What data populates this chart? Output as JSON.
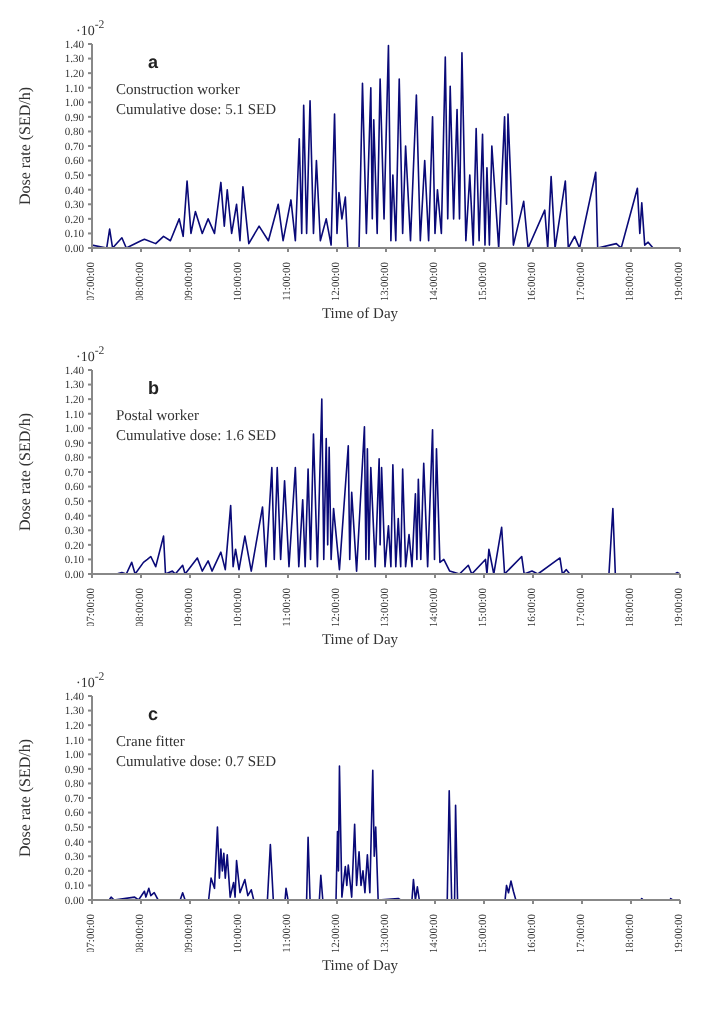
{
  "chart_data": [
    {
      "type": "line",
      "xlabel": "Time of Day",
      "ylabel": "Dose rate (SED/h)",
      "color": "#0a0a78",
      "annotations": [
        "·10$^{-2}$",
        "a",
        "Construction worker",
        "Cumulative dose: 5.1 SED"
      ],
      "xlim": [
        7,
        19
      ],
      "xticks": [
        {
          "value": 7,
          "label": "07:00:00"
        },
        {
          "value": 8,
          "label": "08:00:00"
        },
        {
          "value": 9,
          "label": "09:00:00"
        },
        {
          "value": 10,
          "label": "10:00:00"
        },
        {
          "value": 11,
          "label": "11:00:00"
        },
        {
          "value": 12,
          "label": "12:00:00"
        },
        {
          "value": 13,
          "label": "13:00:00"
        },
        {
          "value": 14,
          "label": "14:00:00"
        },
        {
          "value": 15,
          "label": "15:00:00"
        },
        {
          "value": 16,
          "label": "16:00:00"
        },
        {
          "value": 17,
          "label": "17:00:00"
        },
        {
          "value": 18,
          "label": "18:00:00"
        },
        {
          "value": 19,
          "label": "19:00:00"
        }
      ],
      "ylim": [
        0,
        1.4
      ],
      "yticks": [
        {
          "value": 0,
          "label": "0.00"
        },
        {
          "value": 0.1,
          "label": "0.10"
        },
        {
          "value": 0.2,
          "label": "0.20"
        },
        {
          "value": 0.3,
          "label": "0.30"
        },
        {
          "value": 0.4,
          "label": "0.40"
        },
        {
          "value": 0.5,
          "label": "0.50"
        },
        {
          "value": 0.6,
          "label": "0.60"
        },
        {
          "value": 0.7,
          "label": "0.70"
        },
        {
          "value": 0.8,
          "label": "0.80"
        },
        {
          "value": 0.9,
          "label": "0.90"
        },
        {
          "value": 1,
          "label": "1.00"
        },
        {
          "value": 1.1,
          "label": "1.10"
        },
        {
          "value": 1.2,
          "label": "1.20"
        },
        {
          "value": 1.3,
          "label": "1.30"
        },
        {
          "value": 1.4,
          "label": "1.40"
        }
      ],
      "x": [
        7.0,
        7.3,
        7.36,
        7.42,
        7.61,
        7.7,
        8.0,
        8.07,
        8.3,
        8.46,
        8.6,
        8.78,
        8.86,
        8.94,
        9.02,
        9.11,
        9.25,
        9.37,
        9.5,
        9.63,
        9.7,
        9.76,
        9.85,
        9.95,
        10.02,
        10.08,
        10.2,
        10.41,
        10.6,
        10.8,
        10.9,
        11.06,
        11.15,
        11.23,
        11.28,
        11.32,
        11.38,
        11.45,
        11.52,
        11.58,
        11.66,
        11.78,
        11.88,
        11.95,
        12.0,
        12.04,
        12.1,
        12.17,
        12.22,
        12.45,
        12.52,
        12.6,
        12.69,
        12.72,
        12.75,
        12.82,
        12.88,
        12.96,
        13.05,
        13.1,
        13.14,
        13.2,
        13.27,
        13.34,
        13.4,
        13.5,
        13.62,
        13.7,
        13.79,
        13.87,
        13.95,
        14.0,
        14.05,
        14.13,
        14.21,
        14.26,
        14.31,
        14.38,
        14.45,
        14.5,
        14.55,
        14.63,
        14.71,
        14.78,
        14.84,
        14.9,
        14.97,
        15.02,
        15.06,
        15.11,
        15.16,
        15.3,
        15.42,
        15.46,
        15.49,
        15.6,
        15.81,
        15.9,
        16.24,
        16.3,
        16.37,
        16.45,
        16.66,
        16.72,
        16.85,
        16.95,
        17.28,
        17.32,
        17.7,
        17.8,
        18.13,
        18.18,
        18.22,
        18.28,
        18.35,
        18.45,
        19.0
      ],
      "values": [
        0.02,
        0,
        0.13,
        0,
        0.07,
        0,
        0.05,
        0.06,
        0.03,
        0.08,
        0.05,
        0.2,
        0.08,
        0.46,
        0.1,
        0.25,
        0.1,
        0.2,
        0.1,
        0.45,
        0.15,
        0.4,
        0.1,
        0.3,
        0.05,
        0.42,
        0.03,
        0.15,
        0.05,
        0.3,
        0.05,
        0.33,
        0.05,
        0.75,
        0.1,
        0.98,
        0.1,
        1.01,
        0.1,
        0.6,
        0.05,
        0.2,
        0.02,
        0.92,
        0.1,
        0.38,
        0.2,
        0.35,
        0,
        0,
        1.13,
        0.1,
        1.1,
        0.2,
        0.88,
        0.1,
        1.16,
        0.2,
        1.39,
        0.05,
        0.5,
        0.05,
        1.16,
        0.1,
        0.7,
        0.05,
        1.05,
        0.05,
        0.6,
        0.05,
        0.9,
        0.1,
        0.4,
        0.1,
        1.31,
        0.2,
        1.11,
        0.2,
        0.95,
        0.2,
        1.34,
        0.05,
        0.5,
        0.02,
        0.82,
        0.05,
        0.78,
        0.02,
        0.55,
        0.02,
        0.7,
        0,
        0.9,
        0.3,
        0.92,
        0.02,
        0.32,
        0,
        0.26,
        0,
        0.49,
        0,
        0.46,
        0,
        0.08,
        0,
        0.52,
        0,
        0.03,
        0,
        0.41,
        0.1,
        0.31,
        0.02,
        0.04,
        0,
        0
      ]
    },
    {
      "type": "line",
      "xlabel": "Time of Day",
      "ylabel": "Dose rate (SED/h)",
      "color": "#0a0a78",
      "annotations": [
        "·10$^{-2}$",
        "b",
        "Postal worker",
        "Cumulative dose: 1.6 SED"
      ],
      "xlim": [
        7,
        19
      ],
      "xticks": [
        {
          "value": 7,
          "label": "07:00:00"
        },
        {
          "value": 8,
          "label": "08:00:00"
        },
        {
          "value": 9,
          "label": "09:00:00"
        },
        {
          "value": 10,
          "label": "10:00:00"
        },
        {
          "value": 11,
          "label": "11:00:00"
        },
        {
          "value": 12,
          "label": "12:00:00"
        },
        {
          "value": 13,
          "label": "13:00:00"
        },
        {
          "value": 14,
          "label": "14:00:00"
        },
        {
          "value": 15,
          "label": "15:00:00"
        },
        {
          "value": 16,
          "label": "16:00:00"
        },
        {
          "value": 17,
          "label": "17:00:00"
        },
        {
          "value": 18,
          "label": "18:00:00"
        },
        {
          "value": 19,
          "label": "19:00:00"
        }
      ],
      "ylim": [
        0,
        1.4
      ],
      "yticks": [
        {
          "value": 0,
          "label": "0.00"
        },
        {
          "value": 0.1,
          "label": "0.10"
        },
        {
          "value": 0.2,
          "label": "0.20"
        },
        {
          "value": 0.3,
          "label": "0.30"
        },
        {
          "value": 0.4,
          "label": "0.40"
        },
        {
          "value": 0.5,
          "label": "0.50"
        },
        {
          "value": 0.6,
          "label": "0.60"
        },
        {
          "value": 0.7,
          "label": "0.70"
        },
        {
          "value": 0.8,
          "label": "0.80"
        },
        {
          "value": 0.9,
          "label": "0.90"
        },
        {
          "value": 1,
          "label": "1.00"
        },
        {
          "value": 1.1,
          "label": "1.10"
        },
        {
          "value": 1.2,
          "label": "1.20"
        },
        {
          "value": 1.3,
          "label": "1.30"
        },
        {
          "value": 1.4,
          "label": "1.40"
        }
      ],
      "x": [
        7.0,
        7.5,
        7.61,
        7.7,
        7.81,
        7.88,
        8.05,
        8.13,
        8.2,
        8.3,
        8.46,
        8.5,
        8.64,
        8.7,
        8.85,
        8.9,
        9.15,
        9.25,
        9.37,
        9.45,
        9.63,
        9.72,
        9.83,
        9.88,
        9.93,
        10.0,
        10.12,
        10.25,
        10.48,
        10.55,
        10.67,
        10.72,
        10.78,
        10.85,
        10.93,
        11.02,
        11.15,
        11.22,
        11.3,
        11.35,
        11.41,
        11.46,
        11.52,
        11.6,
        11.69,
        11.73,
        11.78,
        11.81,
        11.84,
        11.88,
        11.93,
        12.05,
        12.23,
        12.26,
        12.3,
        12.4,
        12.56,
        12.59,
        12.62,
        12.65,
        12.69,
        12.78,
        12.86,
        12.88,
        12.91,
        12.98,
        13.05,
        13.1,
        13.14,
        13.2,
        13.25,
        13.3,
        13.34,
        13.4,
        13.47,
        13.53,
        13.6,
        13.63,
        13.66,
        13.71,
        13.77,
        13.85,
        13.95,
        13.99,
        14.03,
        14.1,
        14.18,
        14.3,
        14.5,
        14.68,
        14.75,
        15.03,
        15.06,
        15.1,
        15.2,
        15.36,
        15.42,
        15.77,
        15.82,
        15.98,
        16.1,
        16.55,
        16.6,
        16.68,
        16.75,
        17.55,
        17.63,
        17.68,
        18.9,
        18.94,
        19.0
      ],
      "values": [
        0,
        0,
        0.01,
        0,
        0.08,
        0,
        0.08,
        0.1,
        0.12,
        0.05,
        0.26,
        0,
        0.02,
        0,
        0.06,
        0,
        0.11,
        0.02,
        0.09,
        0.02,
        0.15,
        0.03,
        0.47,
        0.05,
        0.17,
        0.03,
        0.26,
        0.02,
        0.46,
        0.05,
        0.73,
        0.1,
        0.73,
        0.1,
        0.64,
        0.05,
        0.73,
        0.05,
        0.51,
        0.05,
        0.72,
        0.1,
        0.96,
        0.05,
        1.2,
        0.1,
        0.93,
        0.2,
        0.87,
        0.1,
        0.45,
        0.03,
        0.88,
        0.1,
        0.56,
        0.02,
        1.01,
        0.1,
        0.86,
        0.1,
        0.73,
        0.05,
        0.79,
        0.2,
        0.73,
        0.05,
        0.33,
        0.05,
        0.75,
        0.05,
        0.38,
        0.05,
        0.72,
        0.05,
        0.27,
        0.05,
        0.55,
        0.1,
        0.65,
        0.1,
        0.76,
        0.05,
        0.99,
        0.1,
        0.86,
        0.08,
        0.1,
        0.02,
        0,
        0.06,
        0,
        0.1,
        0,
        0.17,
        0,
        0.32,
        0,
        0.12,
        0,
        0.02,
        0,
        0.11,
        0,
        0.03,
        0,
        0,
        0.45,
        0,
        0,
        0.01,
        0
      ]
    },
    {
      "type": "line",
      "xlabel": "Time of Day",
      "ylabel": "Dose rate (SED/h)",
      "color": "#0a0a78",
      "annotations": [
        "·10$^{-2}$",
        "c",
        "Crane fitter",
        "Cumulative dose: 0.7 SED"
      ],
      "xlim": [
        7,
        19
      ],
      "xticks": [
        {
          "value": 7,
          "label": "07:00:00"
        },
        {
          "value": 8,
          "label": "08:00:00"
        },
        {
          "value": 9,
          "label": "09:00:00"
        },
        {
          "value": 10,
          "label": "10:00:00"
        },
        {
          "value": 11,
          "label": "11:00:00"
        },
        {
          "value": 12,
          "label": "12:00:00"
        },
        {
          "value": 13,
          "label": "13:00:00"
        },
        {
          "value": 14,
          "label": "14:00:00"
        },
        {
          "value": 15,
          "label": "15:00:00"
        },
        {
          "value": 16,
          "label": "16:00:00"
        },
        {
          "value": 17,
          "label": "17:00:00"
        },
        {
          "value": 18,
          "label": "18:00:00"
        },
        {
          "value": 19,
          "label": "19:00:00"
        }
      ],
      "ylim": [
        0,
        1.4
      ],
      "yticks": [
        {
          "value": 0,
          "label": "0.00"
        },
        {
          "value": 0.1,
          "label": "0.10"
        },
        {
          "value": 0.2,
          "label": "0.20"
        },
        {
          "value": 0.3,
          "label": "0.30"
        },
        {
          "value": 0.4,
          "label": "0.40"
        },
        {
          "value": 0.5,
          "label": "0.50"
        },
        {
          "value": 0.6,
          "label": "0.60"
        },
        {
          "value": 0.7,
          "label": "0.70"
        },
        {
          "value": 0.8,
          "label": "0.80"
        },
        {
          "value": 0.9,
          "label": "0.90"
        },
        {
          "value": 1,
          "label": "1.00"
        },
        {
          "value": 1.1,
          "label": "1.10"
        },
        {
          "value": 1.2,
          "label": "1.20"
        },
        {
          "value": 1.3,
          "label": "1.30"
        },
        {
          "value": 1.4,
          "label": "1.40"
        }
      ],
      "x": [
        7.0,
        7.35,
        7.39,
        7.45,
        7.87,
        7.95,
        8.07,
        8.1,
        8.16,
        8.2,
        8.27,
        8.35,
        8.8,
        8.85,
        8.9,
        9.38,
        9.43,
        9.5,
        9.56,
        9.6,
        9.63,
        9.66,
        9.69,
        9.72,
        9.76,
        9.82,
        9.89,
        9.92,
        9.95,
        10.02,
        10.12,
        10.18,
        10.25,
        10.3,
        10.58,
        10.64,
        10.7,
        10.94,
        10.96,
        11.0,
        11.38,
        11.41,
        11.45,
        11.64,
        11.67,
        11.71,
        11.98,
        12.01,
        12.03,
        12.05,
        12.1,
        12.17,
        12.2,
        12.23,
        12.3,
        12.36,
        12.4,
        12.45,
        12.49,
        12.53,
        12.57,
        12.62,
        12.67,
        12.73,
        12.76,
        12.79,
        12.84,
        13.25,
        13.3,
        13.53,
        13.56,
        13.6,
        13.64,
        13.68,
        14.25,
        14.29,
        14.34,
        14.4,
        14.42,
        14.46,
        15.43,
        15.46,
        15.5,
        15.55,
        15.6,
        15.65,
        18.2,
        18.22,
        18.25,
        18.8,
        18.81,
        18.85,
        19.0
      ],
      "values": [
        0,
        0,
        0.02,
        0,
        0.02,
        0,
        0.06,
        0.02,
        0.08,
        0.03,
        0.05,
        0,
        0,
        0.05,
        0,
        0,
        0.15,
        0.08,
        0.5,
        0.15,
        0.35,
        0.2,
        0.32,
        0.15,
        0.31,
        0.02,
        0.12,
        0.02,
        0.27,
        0.05,
        0.14,
        0.03,
        0.07,
        0,
        0,
        0.38,
        0,
        0,
        0.08,
        0,
        0,
        0.43,
        0,
        0,
        0.17,
        0,
        0,
        0.47,
        0.2,
        0.92,
        0.02,
        0.23,
        0.1,
        0.24,
        0.02,
        0.52,
        0.1,
        0.33,
        0.1,
        0.2,
        0.05,
        0.31,
        0.05,
        0.89,
        0.3,
        0.5,
        0,
        0.01,
        0,
        0,
        0.14,
        0,
        0.09,
        0,
        0,
        0.75,
        0,
        0,
        0.65,
        0,
        0,
        0.1,
        0.05,
        0.13,
        0.06,
        0,
        0,
        0.01,
        0,
        0,
        0.01,
        0,
        0
      ]
    }
  ]
}
